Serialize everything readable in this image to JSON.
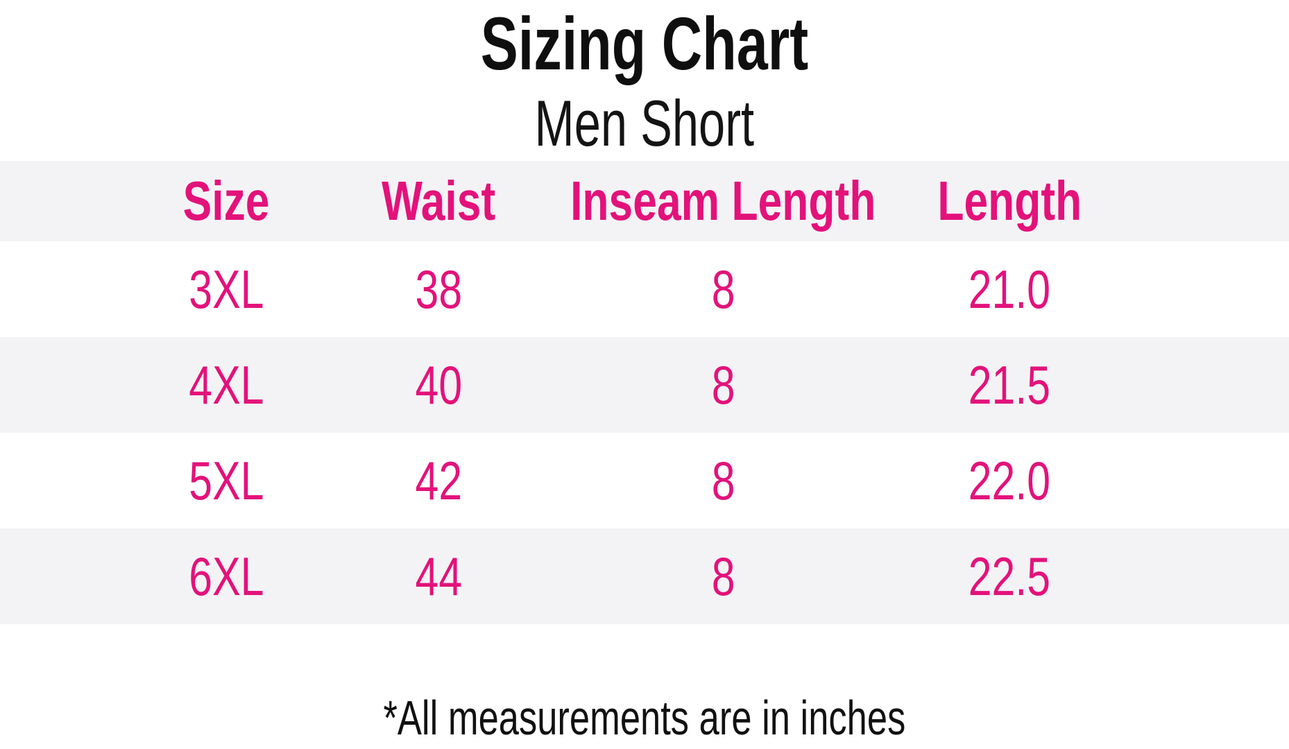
{
  "chart_data": {
    "type": "table",
    "title": "Sizing Chart",
    "subtitle": "Men Short",
    "columns": [
      "Size",
      "Waist",
      "Inseam Length",
      "Length"
    ],
    "rows": [
      [
        "3XL",
        "38",
        "8",
        "21.0"
      ],
      [
        "4XL",
        "40",
        "8",
        "21.5"
      ],
      [
        "5XL",
        "42",
        "8",
        "22.0"
      ],
      [
        "6XL",
        "44",
        "8",
        "22.5"
      ]
    ],
    "numeric_rows": [
      {
        "size": "3XL",
        "waist": 38,
        "inseam_length": 8,
        "length": 21.0
      },
      {
        "size": "4XL",
        "waist": 40,
        "inseam_length": 8,
        "length": 21.5
      },
      {
        "size": "5XL",
        "waist": 42,
        "inseam_length": 8,
        "length": 22.0
      },
      {
        "size": "6XL",
        "waist": 44,
        "inseam_length": 8,
        "length": 22.5
      }
    ],
    "footnote": "*All measurements are in inches",
    "units": "inches",
    "layout": {
      "striping": "header and alternate rows shaded",
      "text_alignment": "center"
    }
  },
  "colors": {
    "accent_pink": "#E3127B",
    "row_stripe": "#F3F3F5",
    "title_black": "#0F0F0F",
    "background": "#FFFFFF"
  }
}
